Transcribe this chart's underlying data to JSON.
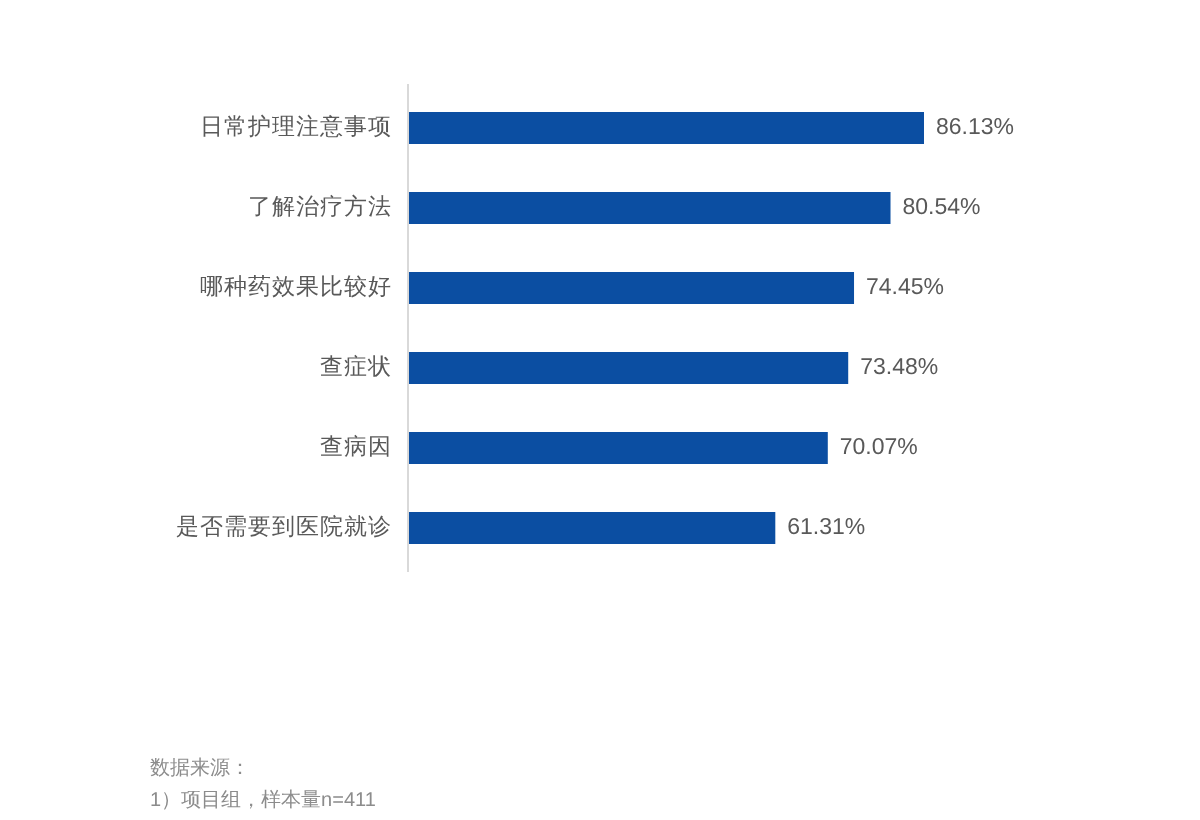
{
  "chart_data": {
    "type": "bar",
    "orientation": "horizontal",
    "categories": [
      "日常护理注意事项",
      "了解治疗方法",
      "哪种药效果比较好",
      "查症状",
      "查病因",
      "是否需要到医院就诊"
    ],
    "values": [
      86.13,
      80.54,
      74.45,
      73.48,
      70.07,
      61.31
    ],
    "value_labels": [
      "86.13%",
      "80.54%",
      "74.45%",
      "73.48%",
      "70.07%",
      "61.31%"
    ],
    "color": "#0b4ea2",
    "tick_labels": "y",
    "annotations": [
      "数据来源：",
      "1）项目组，样本量n=411"
    ]
  }
}
